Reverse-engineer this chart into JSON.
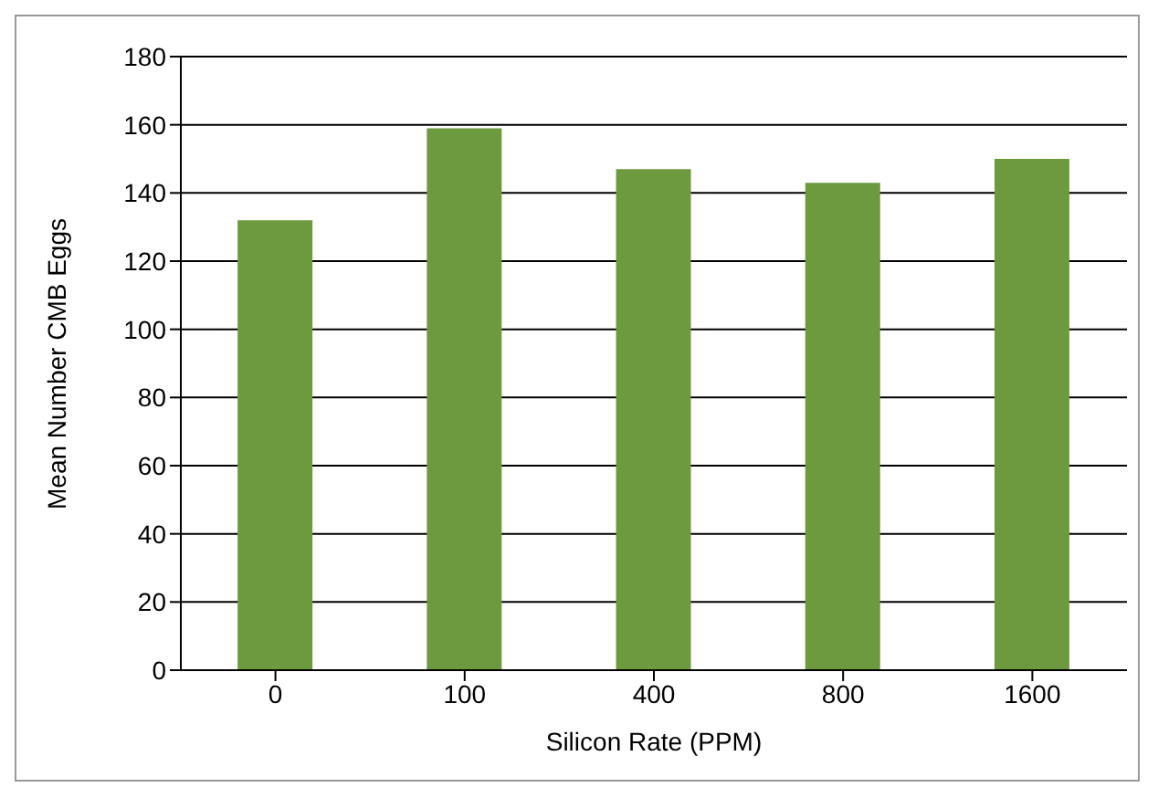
{
  "chart_data": {
    "type": "bar",
    "xlabel": "Silicon Rate (PPM)",
    "ylabel": "Mean Number CMB Eggs",
    "categories": [
      "0",
      "100",
      "400",
      "800",
      "1600"
    ],
    "values": [
      132,
      159,
      147,
      143,
      150
    ],
    "color": "#6e9a3f",
    "ylim": [
      0,
      180
    ],
    "yticks": [
      0,
      20,
      40,
      60,
      80,
      100,
      120,
      140,
      160,
      180
    ],
    "grid": "y"
  }
}
